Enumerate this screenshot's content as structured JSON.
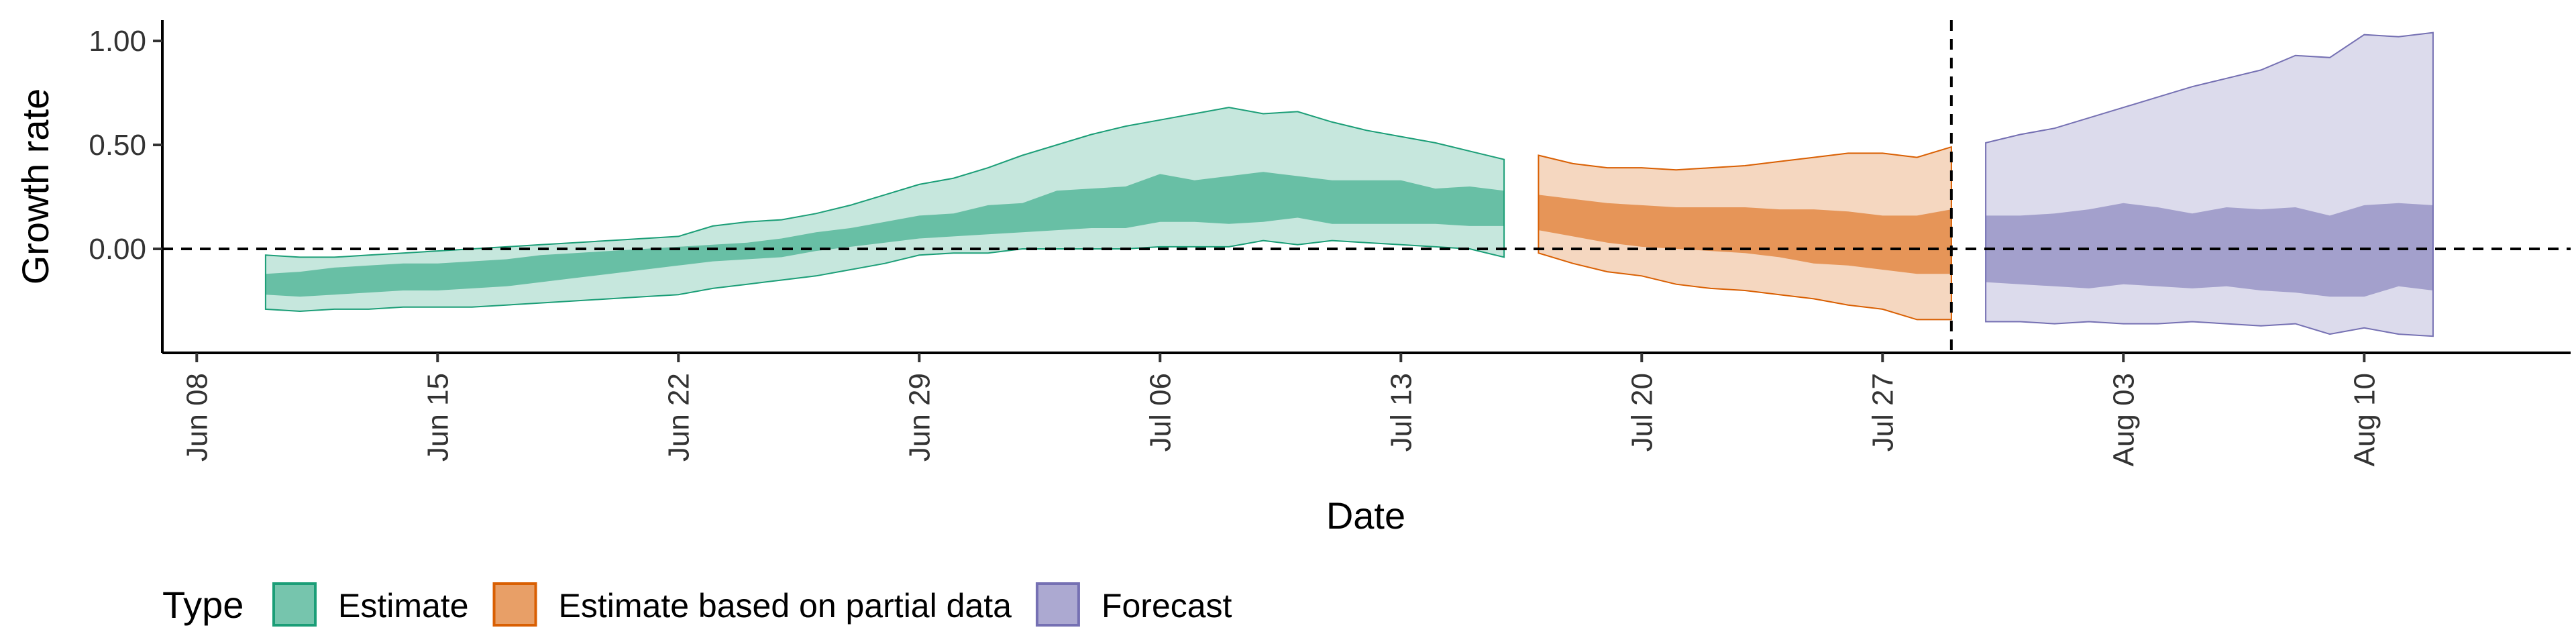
{
  "chart_data": {
    "type": "area",
    "xlabel": "Date",
    "ylabel": "Growth rate",
    "x_ticks": [
      "Jun 08",
      "Jun 15",
      "Jun 22",
      "Jun 29",
      "Jul 06",
      "Jul 13",
      "Jul 20",
      "Jul 27",
      "Aug 03",
      "Aug 10"
    ],
    "y_ticks": [
      "0.00",
      "0.50",
      "1.00"
    ],
    "xlim": [
      "2020-06-07",
      "2020-08-16"
    ],
    "ylim": [
      -0.5,
      1.1
    ],
    "reference_lines": {
      "horizontal_y": 0,
      "vertical_date": "2020-07-29"
    },
    "legend": {
      "title": "Type",
      "position": "bottom",
      "entries": [
        "Estimate",
        "Estimate based on partial data",
        "Forecast"
      ]
    },
    "series": [
      {
        "name": "Estimate",
        "color": "#1b9e77",
        "x": [
          "2020-06-10",
          "2020-06-11",
          "2020-06-12",
          "2020-06-13",
          "2020-06-14",
          "2020-06-15",
          "2020-06-16",
          "2020-06-17",
          "2020-06-18",
          "2020-06-19",
          "2020-06-20",
          "2020-06-21",
          "2020-06-22",
          "2020-06-23",
          "2020-06-24",
          "2020-06-25",
          "2020-06-26",
          "2020-06-27",
          "2020-06-28",
          "2020-06-29",
          "2020-06-30",
          "2020-07-01",
          "2020-07-02",
          "2020-07-03",
          "2020-07-04",
          "2020-07-05",
          "2020-07-06",
          "2020-07-07",
          "2020-07-08",
          "2020-07-09",
          "2020-07-10",
          "2020-07-11",
          "2020-07-12",
          "2020-07-13",
          "2020-07-14",
          "2020-07-15",
          "2020-07-16"
        ],
        "lower90": [
          -0.29,
          -0.3,
          -0.29,
          -0.29,
          -0.28,
          -0.28,
          -0.28,
          -0.27,
          -0.26,
          -0.25,
          -0.24,
          -0.23,
          -0.22,
          -0.19,
          -0.17,
          -0.15,
          -0.13,
          -0.1,
          -0.07,
          -0.03,
          -0.02,
          -0.02,
          0.0,
          0.0,
          0.0,
          0.0,
          0.01,
          0.01,
          0.01,
          0.04,
          0.02,
          0.04,
          0.03,
          0.02,
          0.01,
          0.0,
          -0.04
        ],
        "lower50": [
          -0.22,
          -0.23,
          -0.22,
          -0.21,
          -0.2,
          -0.2,
          -0.19,
          -0.18,
          -0.16,
          -0.14,
          -0.12,
          -0.1,
          -0.08,
          -0.06,
          -0.05,
          -0.04,
          -0.01,
          0.01,
          0.03,
          0.05,
          0.06,
          0.07,
          0.08,
          0.09,
          0.1,
          0.1,
          0.13,
          0.13,
          0.12,
          0.13,
          0.15,
          0.12,
          0.12,
          0.12,
          0.12,
          0.11,
          0.11
        ],
        "upper50": [
          -0.12,
          -0.11,
          -0.09,
          -0.08,
          -0.07,
          -0.07,
          -0.06,
          -0.05,
          -0.03,
          -0.02,
          -0.01,
          0.0,
          0.01,
          0.02,
          0.03,
          0.05,
          0.08,
          0.1,
          0.13,
          0.16,
          0.17,
          0.21,
          0.22,
          0.28,
          0.29,
          0.3,
          0.36,
          0.33,
          0.35,
          0.37,
          0.35,
          0.33,
          0.33,
          0.33,
          0.29,
          0.3,
          0.28
        ],
        "upper90": [
          -0.03,
          -0.04,
          -0.04,
          -0.03,
          -0.02,
          -0.01,
          0.0,
          0.01,
          0.02,
          0.03,
          0.04,
          0.05,
          0.06,
          0.11,
          0.13,
          0.14,
          0.17,
          0.21,
          0.26,
          0.31,
          0.34,
          0.39,
          0.45,
          0.5,
          0.55,
          0.59,
          0.62,
          0.65,
          0.68,
          0.65,
          0.66,
          0.61,
          0.57,
          0.54,
          0.51,
          0.47,
          0.43
        ]
      },
      {
        "name": "Estimate based on partial data",
        "color": "#d95f02",
        "x": [
          "2020-07-17",
          "2020-07-18",
          "2020-07-19",
          "2020-07-20",
          "2020-07-21",
          "2020-07-22",
          "2020-07-23",
          "2020-07-24",
          "2020-07-25",
          "2020-07-26",
          "2020-07-27",
          "2020-07-28",
          "2020-07-29"
        ],
        "lower90": [
          -0.02,
          -0.07,
          -0.11,
          -0.13,
          -0.17,
          -0.19,
          -0.2,
          -0.22,
          -0.24,
          -0.27,
          -0.29,
          -0.34,
          -0.34
        ],
        "lower50": [
          0.09,
          0.06,
          0.03,
          0.01,
          0.0,
          -0.01,
          -0.02,
          -0.04,
          -0.07,
          -0.08,
          -0.1,
          -0.12,
          -0.12
        ],
        "upper50": [
          0.26,
          0.24,
          0.22,
          0.21,
          0.2,
          0.2,
          0.2,
          0.19,
          0.19,
          0.18,
          0.16,
          0.16,
          0.19
        ],
        "upper90": [
          0.45,
          0.41,
          0.39,
          0.39,
          0.38,
          0.39,
          0.4,
          0.42,
          0.44,
          0.46,
          0.46,
          0.44,
          0.49
        ]
      },
      {
        "name": "Forecast",
        "color": "#7570b3",
        "x": [
          "2020-07-30",
          "2020-07-31",
          "2020-08-01",
          "2020-08-02",
          "2020-08-03",
          "2020-08-04",
          "2020-08-05",
          "2020-08-06",
          "2020-08-07",
          "2020-08-08",
          "2020-08-09",
          "2020-08-10",
          "2020-08-11",
          "2020-08-12"
        ],
        "lower90": [
          -0.35,
          -0.35,
          -0.36,
          -0.35,
          -0.36,
          -0.36,
          -0.35,
          -0.36,
          -0.37,
          -0.36,
          -0.41,
          -0.38,
          -0.41,
          -0.42
        ],
        "lower50": [
          -0.16,
          -0.17,
          -0.18,
          -0.19,
          -0.17,
          -0.18,
          -0.19,
          -0.18,
          -0.2,
          -0.21,
          -0.23,
          -0.23,
          -0.18,
          -0.2
        ],
        "upper50": [
          0.16,
          0.16,
          0.17,
          0.19,
          0.22,
          0.2,
          0.17,
          0.2,
          0.19,
          0.2,
          0.16,
          0.21,
          0.22,
          0.21
        ],
        "upper90": [
          0.51,
          0.55,
          0.58,
          0.63,
          0.68,
          0.73,
          0.78,
          0.82,
          0.86,
          0.93,
          0.92,
          1.03,
          1.02,
          1.04
        ]
      }
    ]
  }
}
